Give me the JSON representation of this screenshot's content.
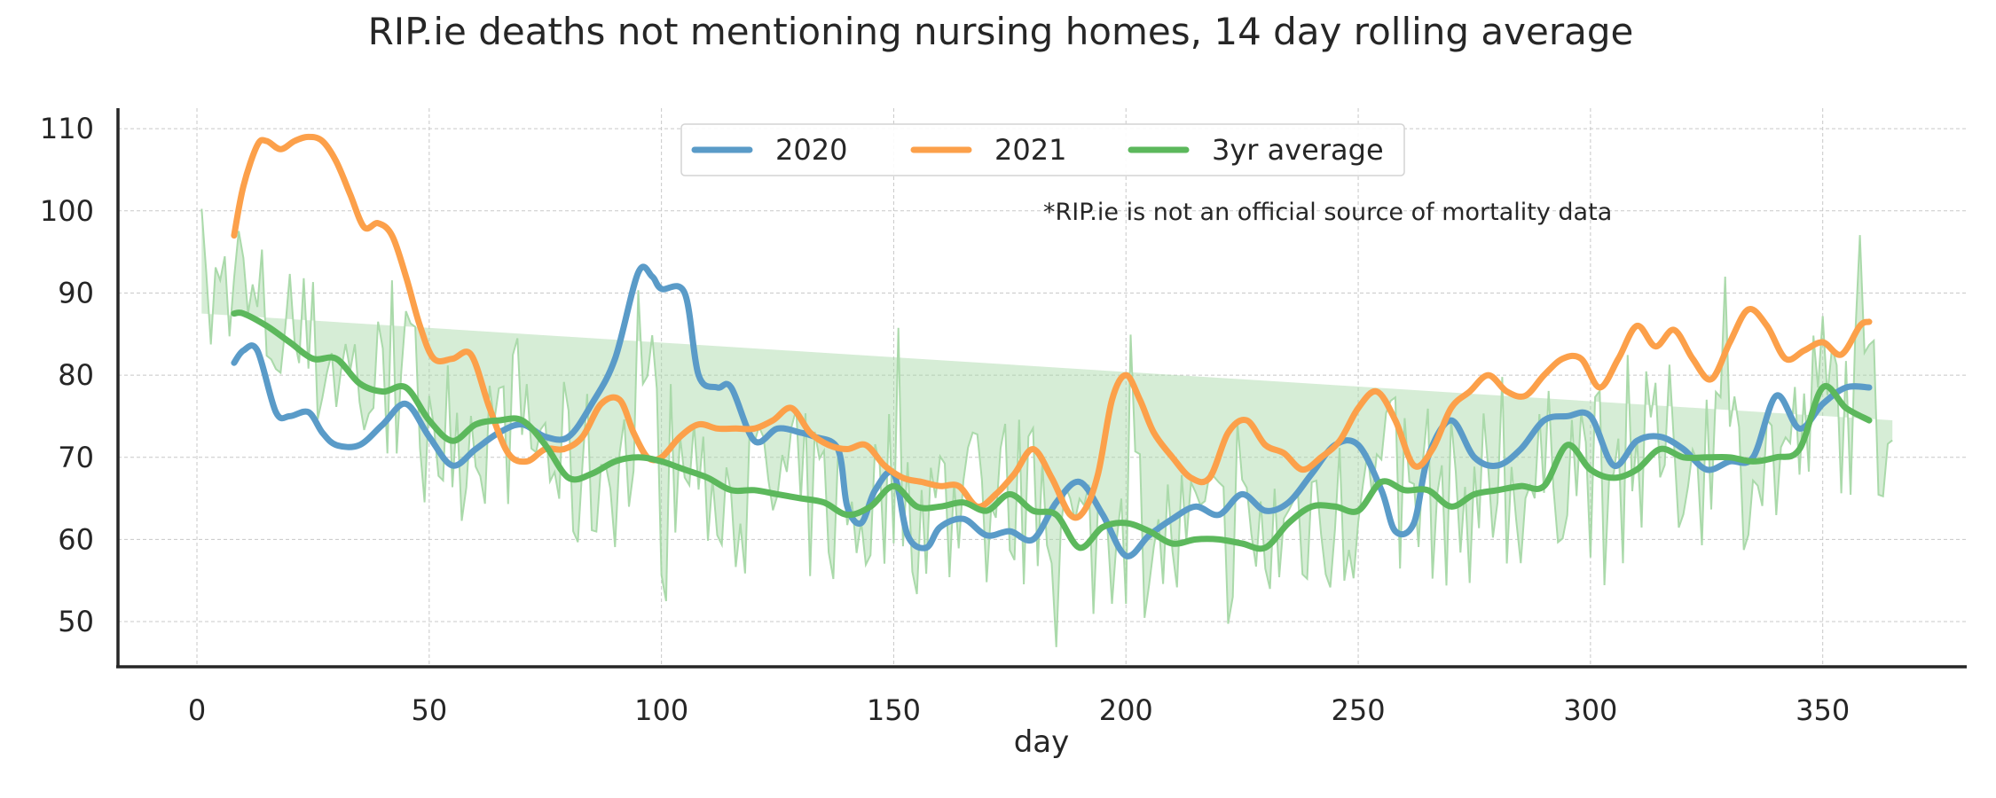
{
  "chart_data": {
    "type": "line",
    "title": "RIP.ie deaths not mentioning nursing homes, 14 day rolling average",
    "xlabel": "day",
    "ylabel": "",
    "xlim": [
      -17,
      381
    ],
    "ylim": [
      44.5,
      112.5
    ],
    "xticks": [
      0,
      50,
      100,
      150,
      200,
      250,
      300,
      350
    ],
    "yticks": [
      50,
      60,
      70,
      80,
      90,
      100,
      110
    ],
    "grid": true,
    "legend": {
      "placement": "top-center",
      "entries": [
        "2020",
        "2021",
        "3yr average"
      ]
    },
    "annotation": "*RIP.ie is not an official source of mortality data",
    "colors": {
      "2020": "#5a9bc8",
      "2021": "#fca04a",
      "3yr average": "#5cb85c",
      "band": "#a3d6a3",
      "text": "#262626"
    },
    "series": [
      {
        "name": "2020",
        "x": [
          8,
          10,
          13,
          17,
          20,
          24,
          27,
          30,
          35,
          40,
          45,
          50,
          55,
          60,
          65,
          70,
          75,
          80,
          85,
          90,
          95,
          98,
          100,
          105,
          108,
          112,
          115,
          120,
          125,
          130,
          133,
          138,
          140,
          143,
          146,
          150,
          153,
          157,
          160,
          165,
          170,
          175,
          180,
          185,
          190,
          195,
          200,
          205,
          210,
          215,
          220,
          225,
          230,
          235,
          240,
          245,
          250,
          255,
          258,
          262,
          265,
          270,
          275,
          280,
          285,
          290,
          295,
          300,
          305,
          310,
          315,
          320,
          325,
          330,
          335,
          340,
          345,
          350,
          355,
          360
        ],
        "values": [
          81.5,
          83,
          83,
          75.5,
          75,
          75.5,
          73,
          71.5,
          71.5,
          74,
          76.5,
          72.5,
          69,
          71,
          73,
          74,
          72.5,
          72.5,
          76.5,
          82,
          92.5,
          92,
          90.5,
          90,
          80,
          78.5,
          78.5,
          72,
          73.5,
          73,
          72.5,
          71,
          64,
          62,
          66,
          68,
          60.5,
          59,
          61.5,
          62.5,
          60.5,
          61,
          60,
          64.5,
          67,
          63,
          58,
          60.5,
          62.5,
          64,
          63,
          65.5,
          63.5,
          64.5,
          68,
          71.5,
          71.5,
          66,
          61,
          62,
          70,
          74.5,
          70,
          69,
          71,
          74.5,
          75,
          75,
          69,
          72,
          72.5,
          71,
          68.5,
          69.5,
          70,
          77.5,
          73.5,
          76.5,
          78.5,
          78.5
        ]
      },
      {
        "name": "2021",
        "x": [
          8,
          10,
          13,
          15,
          18,
          21,
          24,
          27,
          30,
          33,
          36,
          39,
          42,
          45,
          48,
          51,
          55,
          59,
          63,
          67,
          71,
          75,
          79,
          83,
          87,
          91,
          94,
          97,
          100,
          104,
          108,
          112,
          116,
          120,
          124,
          128,
          132,
          136,
          140,
          144,
          148,
          152,
          156,
          160,
          164,
          168,
          172,
          176,
          180,
          184,
          188,
          191,
          194,
          197,
          200,
          203,
          206,
          210,
          214,
          218,
          222,
          226,
          230,
          234,
          238,
          242,
          246,
          250,
          254,
          258,
          262,
          266,
          270,
          274,
          278,
          282,
          286,
          290,
          294,
          298,
          302,
          306,
          310,
          314,
          318,
          322,
          326,
          330,
          334,
          338,
          342,
          346,
          350,
          354,
          358,
          360
        ],
        "values": [
          97,
          103,
          108,
          108.5,
          107.5,
          108.5,
          109,
          108.5,
          106,
          102,
          98,
          98.5,
          97,
          92,
          86,
          82,
          82,
          82.5,
          76,
          70.5,
          69.5,
          71,
          71,
          72.5,
          76.5,
          77,
          73,
          70,
          70,
          72.5,
          74,
          73.5,
          73.5,
          73.5,
          74.5,
          76,
          73,
          71.5,
          71,
          71.5,
          69,
          67.5,
          67,
          66.5,
          66.5,
          64,
          65.5,
          68,
          71,
          67.5,
          63,
          63.5,
          68,
          77,
          80,
          77,
          73,
          70,
          67.5,
          67.5,
          73,
          74.5,
          71.5,
          70.5,
          68.5,
          70,
          72,
          76,
          78,
          74.5,
          69,
          71,
          76,
          78,
          80,
          78,
          77.5,
          80,
          82,
          82,
          78.5,
          82,
          86,
          83.5,
          85.5,
          82,
          79.5,
          84,
          88,
          86,
          82,
          83,
          84,
          82.5,
          86,
          86.5
        ]
      },
      {
        "name": "3yr average",
        "x": [
          8,
          10,
          15,
          20,
          25,
          30,
          35,
          40,
          45,
          50,
          55,
          60,
          65,
          70,
          75,
          80,
          85,
          90,
          95,
          100,
          105,
          110,
          115,
          120,
          125,
          130,
          135,
          140,
          145,
          150,
          155,
          160,
          165,
          170,
          175,
          180,
          185,
          190,
          195,
          200,
          205,
          210,
          215,
          220,
          225,
          230,
          235,
          240,
          245,
          250,
          255,
          260,
          265,
          270,
          275,
          280,
          285,
          290,
          295,
          300,
          305,
          310,
          315,
          320,
          325,
          330,
          335,
          340,
          345,
          350,
          355,
          360
        ],
        "values": [
          87.5,
          87.5,
          86,
          84,
          82,
          82,
          79,
          78,
          78.5,
          74.5,
          72,
          74,
          74.5,
          74.5,
          71.5,
          67.5,
          68,
          69.5,
          70,
          69.5,
          68.5,
          67.5,
          66,
          66,
          65.5,
          65,
          64.5,
          63,
          64,
          66.5,
          64,
          64,
          64.5,
          63.5,
          65.5,
          63.5,
          63,
          59,
          61.5,
          62,
          61,
          59.5,
          60,
          60,
          59.5,
          59,
          62,
          64,
          64,
          63.5,
          67,
          66,
          66,
          64,
          65.5,
          66,
          66.5,
          66.5,
          71.5,
          68.5,
          67.5,
          68.5,
          71,
          70,
          70,
          70,
          69.5,
          70,
          71,
          78.5,
          76,
          74.5
        ]
      }
    ]
  }
}
